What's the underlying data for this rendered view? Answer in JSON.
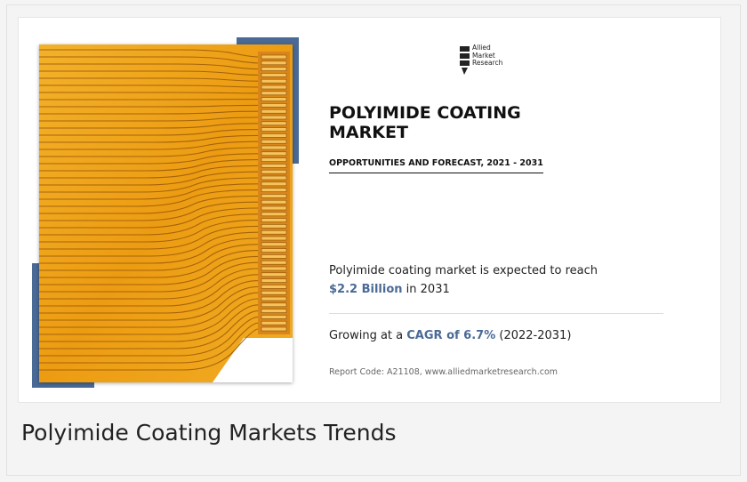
{
  "logo": {
    "lines": [
      "Allied",
      "Market",
      "Research"
    ]
  },
  "report": {
    "title_line1": "POLYIMIDE COATING",
    "title_line2": "MARKET",
    "subtitle": "OPPORTUNITIES AND FORECAST, 2021 - 2031",
    "stat1_text": "Polyimide coating market is expected to reach",
    "stat1_value": "$2.2 Billion",
    "stat1_suffix": "in 2031",
    "stat2_prefix": "Growing at a",
    "stat2_value": "CAGR of 6.7%",
    "stat2_suffix": "(2022-2031)",
    "report_code": "Report Code: A21108, www.alliedmarketresearch.com"
  },
  "caption": "Polyimide Coating Markets Trends",
  "colors": {
    "accent": "#4a6a96",
    "film": "#f0a020"
  },
  "image": {
    "subject": "flexible-polyimide-circuit"
  }
}
